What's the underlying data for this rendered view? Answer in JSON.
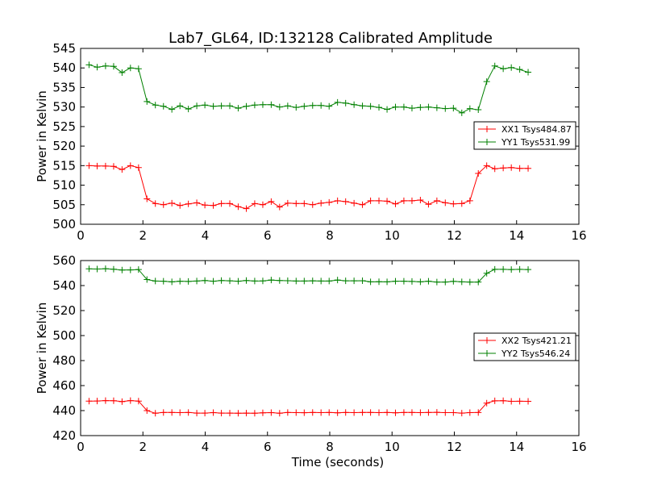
{
  "title": "Lab7_GL64, ID:132128 Calibrated Amplitude",
  "colors": {
    "series1": "#ff0000",
    "series2": "#008000",
    "axes": "#000000",
    "background": "#ffffff"
  },
  "chart_data": [
    {
      "type": "line",
      "title": "Lab7_GL64, ID:132128 Calibrated Amplitude",
      "xlabel": "",
      "ylabel": "Power in Kelvin",
      "xlim": [
        0,
        16
      ],
      "ylim": [
        500,
        545
      ],
      "xticks": [
        0,
        2,
        4,
        6,
        8,
        10,
        12,
        14,
        16
      ],
      "yticks": [
        500,
        505,
        510,
        515,
        520,
        525,
        530,
        535,
        540,
        545
      ],
      "grid": false,
      "legend": "center-right",
      "marker": "+",
      "x": [
        0.27,
        0.53,
        0.8,
        1.06,
        1.33,
        1.6,
        1.86,
        2.13,
        2.4,
        2.66,
        2.93,
        3.19,
        3.46,
        3.73,
        3.99,
        4.26,
        4.52,
        4.79,
        5.06,
        5.32,
        5.59,
        5.85,
        6.12,
        6.39,
        6.65,
        6.92,
        7.18,
        7.45,
        7.72,
        7.98,
        8.25,
        8.51,
        8.78,
        9.05,
        9.31,
        9.58,
        9.84,
        10.11,
        10.38,
        10.64,
        10.91,
        11.17,
        11.44,
        11.71,
        11.97,
        12.24,
        12.5,
        12.77,
        13.04,
        13.3,
        13.57,
        13.83,
        14.1,
        14.37
      ],
      "series": [
        {
          "name": "XX1 Tsys484.87",
          "values": [
            515,
            514.9,
            514.9,
            514.8,
            514,
            515,
            514.5,
            506.5,
            505.3,
            505,
            505.4,
            504.8,
            505.2,
            505.5,
            504.9,
            504.8,
            505.3,
            505.3,
            504.5,
            504,
            505.3,
            505,
            505.8,
            504.4,
            505.4,
            505.3,
            505.3,
            505,
            505.4,
            505.6,
            506,
            505.8,
            505.4,
            505,
            506,
            506,
            505.9,
            505.2,
            506,
            506,
            506.2,
            505.1,
            506,
            505.5,
            505.2,
            505.3,
            506,
            513,
            515,
            514.2,
            514.4,
            514.5,
            514.3,
            514.3
          ]
        },
        {
          "name": "YY1 Tsys531.99",
          "values": [
            540.8,
            540.2,
            540.5,
            540.4,
            538.8,
            540,
            539.8,
            531.4,
            530.5,
            530.2,
            529.4,
            530.3,
            529.5,
            530.3,
            530.5,
            530.2,
            530.3,
            530.3,
            529.7,
            530.2,
            530.5,
            530.6,
            530.6,
            530,
            530.3,
            529.9,
            530.2,
            530.4,
            530.4,
            530.2,
            531.2,
            531,
            530.6,
            530.3,
            530.2,
            529.9,
            529.4,
            530,
            530,
            529.7,
            529.9,
            530,
            529.8,
            529.6,
            529.7,
            528.5,
            529.6,
            529.3,
            536.5,
            540.5,
            539.8,
            540.1,
            539.6,
            538.9
          ]
        }
      ]
    },
    {
      "type": "line",
      "title": "",
      "xlabel": "Time (seconds)",
      "ylabel": "Power in Kelvin",
      "xlim": [
        0,
        16
      ],
      "ylim": [
        420,
        560
      ],
      "xticks": [
        0,
        2,
        4,
        6,
        8,
        10,
        12,
        14,
        16
      ],
      "yticks": [
        420,
        440,
        460,
        480,
        500,
        520,
        540,
        560
      ],
      "grid": false,
      "legend": "center-right",
      "marker": "+",
      "x": [
        0.27,
        0.53,
        0.8,
        1.06,
        1.33,
        1.6,
        1.86,
        2.13,
        2.4,
        2.66,
        2.93,
        3.19,
        3.46,
        3.73,
        3.99,
        4.26,
        4.52,
        4.79,
        5.06,
        5.32,
        5.59,
        5.85,
        6.12,
        6.39,
        6.65,
        6.92,
        7.18,
        7.45,
        7.72,
        7.98,
        8.25,
        8.51,
        8.78,
        9.05,
        9.31,
        9.58,
        9.84,
        10.11,
        10.38,
        10.64,
        10.91,
        11.17,
        11.44,
        11.71,
        11.97,
        12.24,
        12.5,
        12.77,
        13.04,
        13.3,
        13.57,
        13.83,
        14.1,
        14.37
      ],
      "series": [
        {
          "name": "XX2 Tsys421.21",
          "values": [
            447.6,
            447.7,
            448,
            447.9,
            447.2,
            448,
            447.6,
            440,
            437.9,
            438.5,
            438.5,
            438.4,
            438.5,
            438,
            438,
            438.4,
            438,
            438,
            437.9,
            438,
            437.9,
            438.2,
            438.4,
            437.9,
            438.5,
            438.4,
            438.3,
            438.5,
            438.4,
            438.5,
            438.2,
            438.5,
            438.4,
            438.5,
            438.5,
            438.4,
            438.5,
            438.2,
            438.5,
            438.5,
            438.4,
            438.5,
            438.6,
            438.4,
            438.4,
            438,
            438.4,
            438.5,
            446,
            447.8,
            447.9,
            447.4,
            447.5,
            447.4
          ]
        },
        {
          "name": "YY2 Tsys546.24",
          "values": [
            553.4,
            553.2,
            553.5,
            553.1,
            552.4,
            552.5,
            552.8,
            544.8,
            543.6,
            543.5,
            543,
            543.5,
            543.3,
            543.6,
            544,
            543.5,
            544,
            543.8,
            543.5,
            544,
            543.6,
            543.7,
            544.4,
            544,
            543.9,
            543.6,
            543.6,
            543.8,
            543.6,
            543.6,
            544.4,
            543.8,
            543.8,
            543.9,
            543,
            543.1,
            543,
            543.5,
            543.5,
            543.3,
            543,
            543.5,
            542.8,
            542.8,
            543.4,
            543,
            542.8,
            542.8,
            549.8,
            553,
            553,
            552.8,
            553,
            552.8
          ]
        }
      ]
    }
  ]
}
